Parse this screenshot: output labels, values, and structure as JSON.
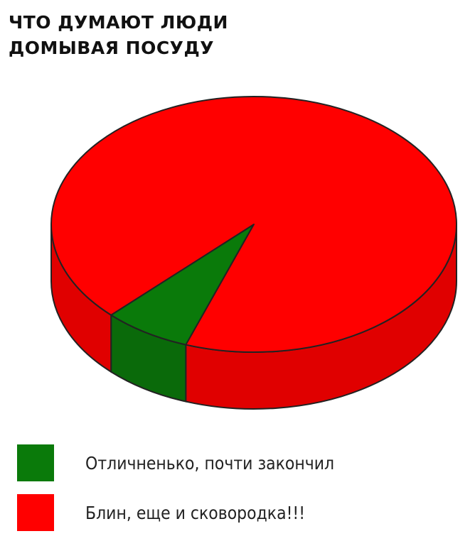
{
  "chart_data": {
    "type": "pie",
    "style": "3d",
    "title_lines": [
      "ЧТО ДУМАЮТ ЛЮДИ",
      "ДОМЫВАЯ ПОСУДУ"
    ],
    "legend_position": "bottom-left",
    "slices": [
      {
        "label": "Отличненько, почти закончил",
        "value": 7,
        "color": "#0a7a0a"
      },
      {
        "label": "Блин, еще и сковородка!!!",
        "value": 93,
        "color": "#ff0000"
      }
    ]
  }
}
